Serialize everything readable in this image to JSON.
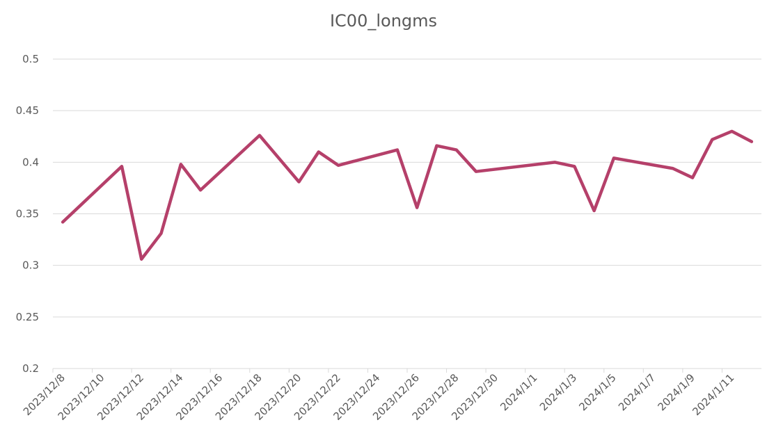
{
  "chart_data": {
    "type": "line",
    "title": "IC00_longms",
    "x": [
      "2023/12/8",
      "2023/12/11",
      "2023/12/12",
      "2023/12/13",
      "2023/12/14",
      "2023/12/15",
      "2023/12/18",
      "2023/12/20",
      "2023/12/21",
      "2023/12/22",
      "2023/12/25",
      "2023/12/26",
      "2023/12/27",
      "2023/12/28",
      "2023/12/29",
      "2024/1/2",
      "2024/1/3",
      "2024/1/4",
      "2024/1/5",
      "2024/1/8",
      "2024/1/9",
      "2024/1/10",
      "2024/1/11",
      "2024/1/12"
    ],
    "series": [
      {
        "name": "IC00_longms",
        "color": "#b5406a",
        "values": [
          0.342,
          0.396,
          0.306,
          0.331,
          0.398,
          0.373,
          0.426,
          0.381,
          0.41,
          0.397,
          0.412,
          0.356,
          0.416,
          0.412,
          0.391,
          0.4,
          0.396,
          0.353,
          0.404,
          0.394,
          0.385,
          0.422,
          0.43,
          0.42
        ]
      }
    ],
    "xlim": [
      "2023/12/8",
      "2024/1/12"
    ],
    "xticks": [
      "2023/12/8",
      "2023/12/10",
      "2023/12/12",
      "2023/12/14",
      "2023/12/16",
      "2023/12/18",
      "2023/12/20",
      "2023/12/22",
      "2023/12/24",
      "2023/12/26",
      "2023/12/28",
      "2023/12/30",
      "2024/1/1",
      "2024/1/3",
      "2024/1/5",
      "2024/1/7",
      "2024/1/9",
      "2024/1/11"
    ],
    "ylim": [
      0.2,
      0.5
    ],
    "yticks": [
      0.2,
      0.25,
      0.3,
      0.35,
      0.4,
      0.45,
      0.5
    ],
    "grid": true
  }
}
